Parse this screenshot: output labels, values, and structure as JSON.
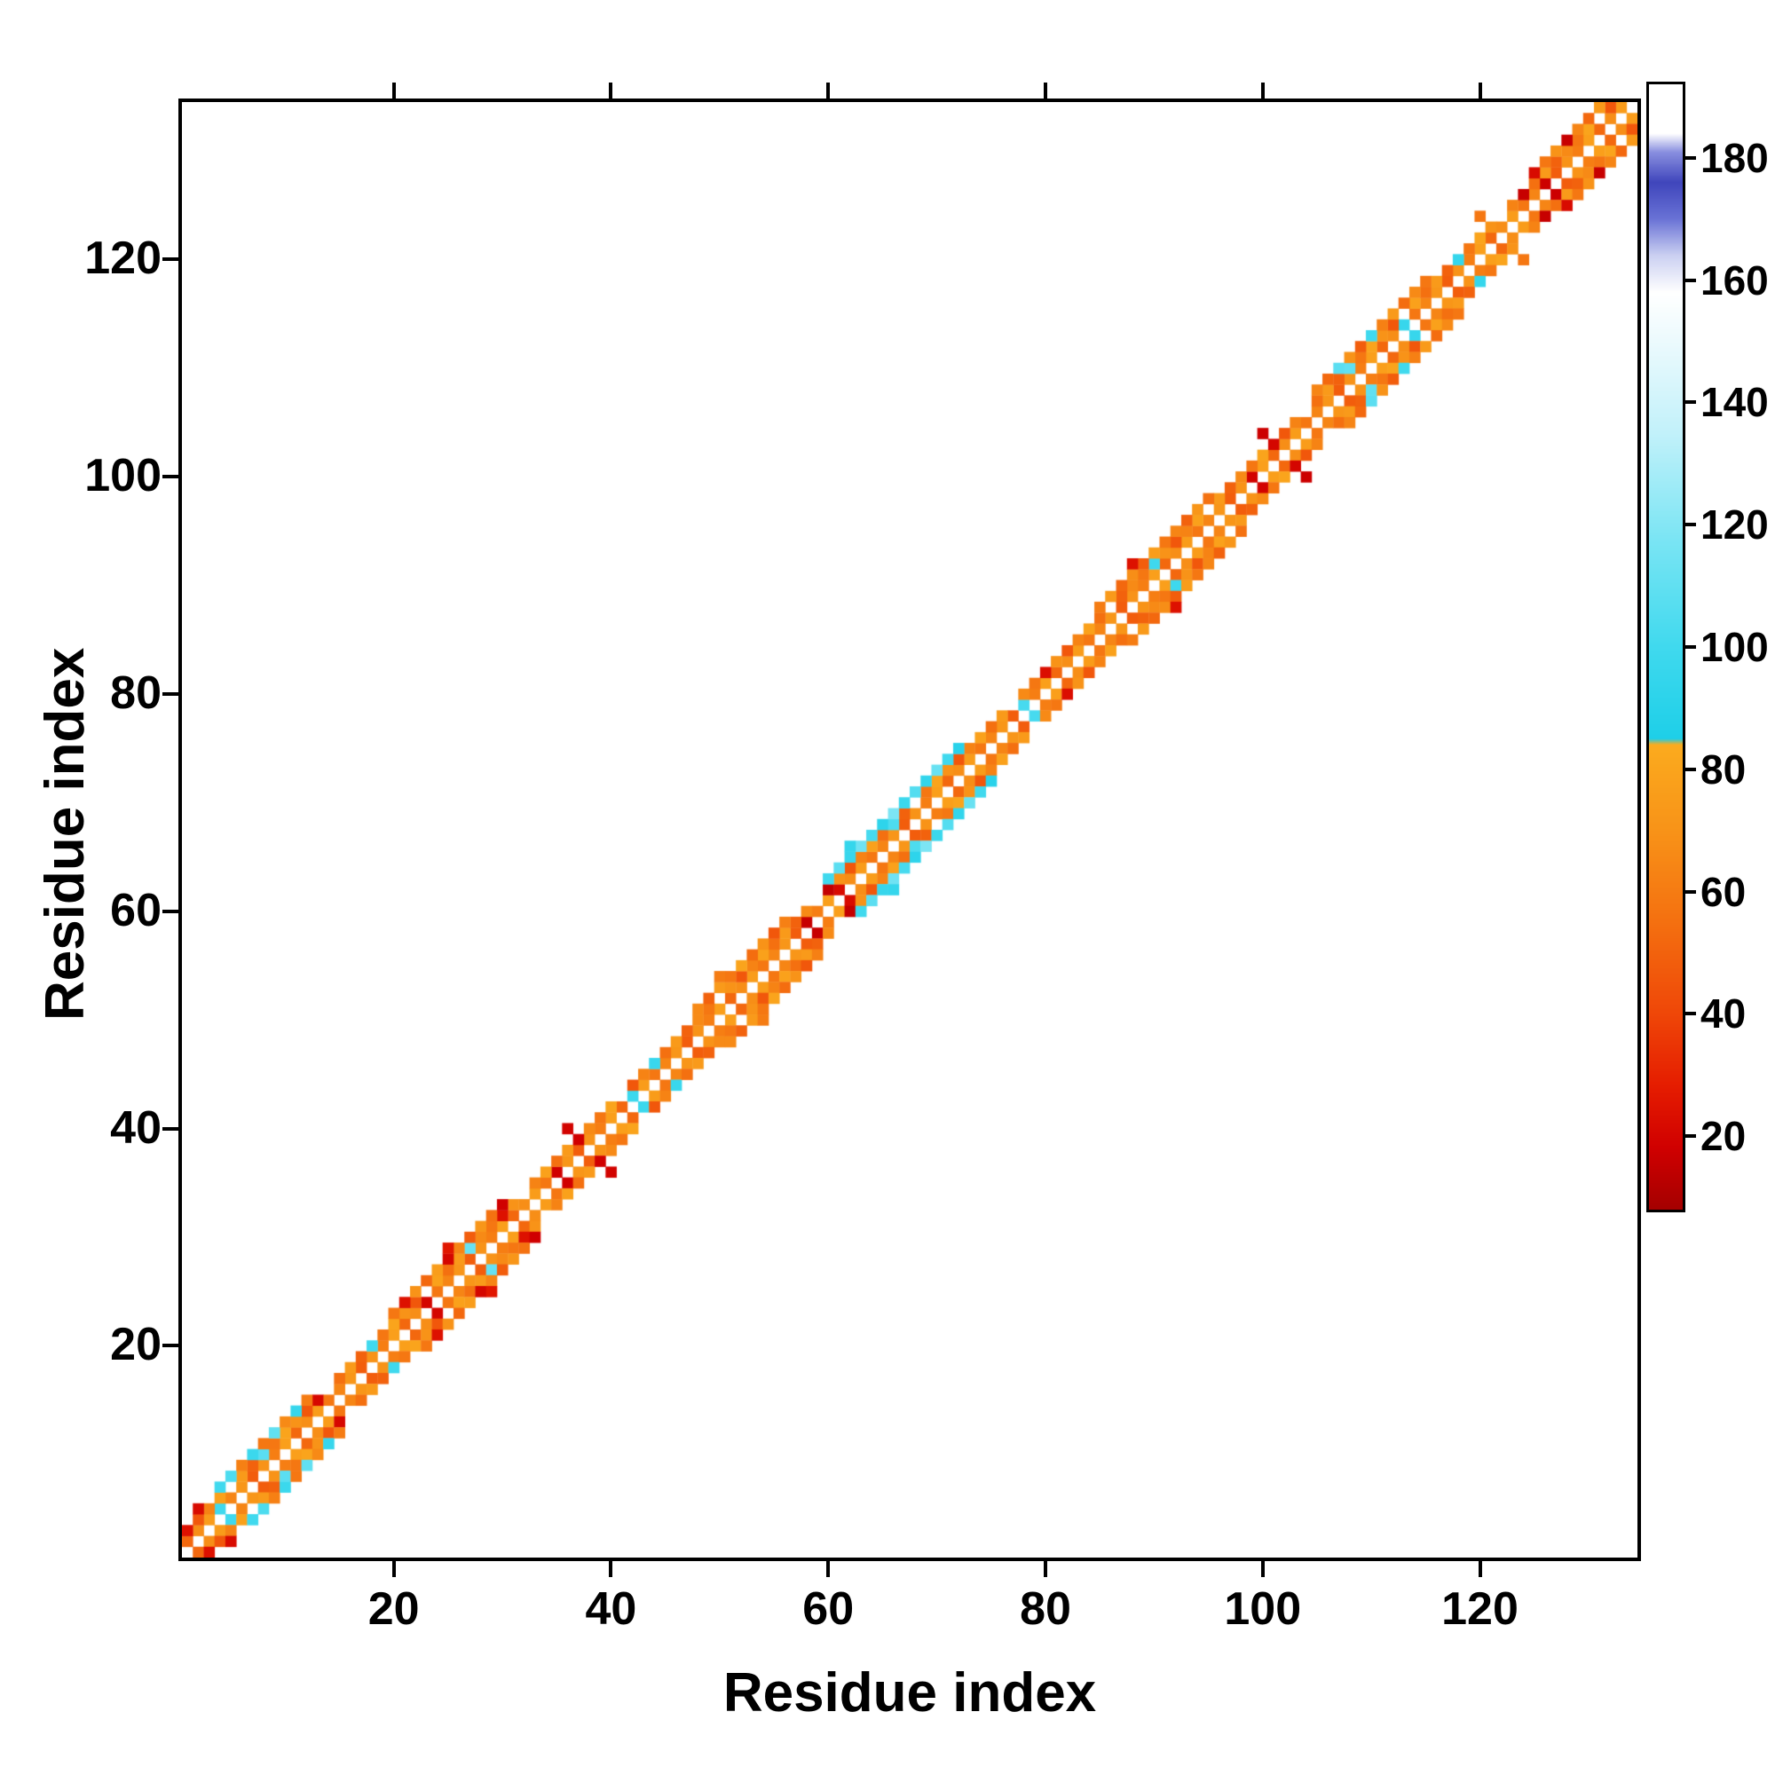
{
  "figure": {
    "background": "#ffffff"
  },
  "chart_data": {
    "type": "heatmap",
    "title": "",
    "xlabel": "Residue index",
    "ylabel": "Residue index",
    "n_residues": 134,
    "x_ticks": [
      20,
      40,
      60,
      80,
      100,
      120
    ],
    "y_ticks": [
      20,
      40,
      60,
      80,
      100,
      120
    ],
    "grid": false,
    "diagonal_masked": true,
    "colorbar": {
      "position": "right",
      "min": 8,
      "max": 192,
      "ticks": [
        20,
        40,
        60,
        80,
        100,
        120,
        140,
        160,
        180
      ],
      "stops": [
        {
          "v": 8,
          "c": "#a50000"
        },
        {
          "v": 18,
          "c": "#d00000"
        },
        {
          "v": 28,
          "c": "#e51c00"
        },
        {
          "v": 40,
          "c": "#ef4708"
        },
        {
          "v": 55,
          "c": "#f47010"
        },
        {
          "v": 70,
          "c": "#f89318"
        },
        {
          "v": 84,
          "c": "#fbab1e"
        },
        {
          "v": 85,
          "c": "#1ecfe8"
        },
        {
          "v": 100,
          "c": "#40d9ee"
        },
        {
          "v": 118,
          "c": "#7ce5f4"
        },
        {
          "v": 135,
          "c": "#c2f1fa"
        },
        {
          "v": 150,
          "c": "#ecfafd"
        },
        {
          "v": 158,
          "c": "#ffffff"
        },
        {
          "v": 164,
          "c": "#ccd1f2"
        },
        {
          "v": 170,
          "c": "#6a73d6"
        },
        {
          "v": 176,
          "c": "#4046bc"
        },
        {
          "v": 181,
          "c": "#8a90e0"
        },
        {
          "v": 184,
          "c": "#ffffff"
        },
        {
          "v": 192,
          "c": "#ffffff"
        }
      ]
    },
    "band": {
      "offset1": [
        52,
        68,
        75,
        100,
        64,
        72,
        48,
        70,
        61,
        77,
        52,
        68,
        75,
        58,
        64,
        72,
        48,
        70,
        61,
        77,
        52,
        68,
        20,
        58,
        64,
        72,
        48,
        70,
        61,
        77,
        52,
        68,
        75,
        58,
        18,
        72,
        48,
        70,
        61,
        77,
        52,
        98,
        75,
        58,
        64,
        72,
        48,
        70,
        61,
        77,
        52,
        68,
        75,
        58,
        64,
        72,
        48,
        16,
        61,
        77,
        22,
        68,
        75,
        58,
        64,
        72,
        48,
        70,
        61,
        77,
        52,
        68,
        75,
        58,
        64,
        72,
        48,
        102,
        61,
        77,
        52,
        68,
        75,
        58,
        64,
        72,
        48,
        70,
        61,
        77,
        52,
        68,
        75,
        58,
        64,
        72,
        48,
        70,
        19,
        77,
        52,
        68,
        75,
        58,
        64,
        72,
        48,
        70,
        61,
        77,
        52,
        68,
        96,
        58,
        64,
        72,
        48,
        70,
        61,
        77,
        52,
        68,
        75,
        58,
        64,
        17,
        48,
        70,
        61,
        77,
        52,
        68,
        75
      ],
      "offset2": [
        24,
        46,
        63,
        78,
        null,
        74,
        50,
        108,
        58,
        80,
        70,
        46,
        21,
        null,
        55,
        74,
        50,
        100,
        58,
        80,
        70,
        46,
        null,
        78,
        55,
        74,
        112,
        66,
        58,
        24,
        70,
        null,
        63,
        78,
        55,
        74,
        18,
        66,
        58,
        80,
        null,
        46,
        63,
        97,
        55,
        74,
        50,
        66,
        58,
        null,
        70,
        46,
        63,
        78,
        55,
        74,
        50,
        66,
        null,
        15,
        70,
        46,
        63,
        78,
        55,
        104,
        50,
        null,
        58,
        80,
        70,
        46,
        63,
        78,
        55,
        74,
        null,
        66,
        58,
        23,
        70,
        46,
        63,
        78,
        55,
        null,
        50,
        66,
        58,
        99,
        70,
        46,
        63,
        78,
        null,
        74,
        50,
        66,
        58,
        80,
        20,
        46,
        63,
        null,
        55,
        74,
        50,
        110,
        58,
        80,
        70,
        46,
        null,
        78,
        55,
        74,
        50,
        95,
        58,
        80,
        70,
        null,
        63,
        16,
        55,
        74,
        50,
        66,
        58,
        80,
        null,
        46
      ],
      "offset3": [
        null,
        22,
        null,
        100,
        104,
        62,
        98,
        58,
        110,
        66,
        96,
        60,
        null,
        null,
        null,
        null,
        null,
        null,
        null,
        58,
        24,
        70,
        52,
        76,
        20,
        64,
        48,
        72,
        56,
        18,
        null,
        null,
        null,
        null,
        null,
        null,
        null,
        null,
        null,
        null,
        null,
        null,
        null,
        null,
        null,
        null,
        null,
        66,
        50,
        74,
        58,
        80,
        54,
        70,
        46,
        62,
        null,
        null,
        null,
        100,
        108,
        96,
        114,
        102,
        92,
        118,
        98,
        106,
        94,
        112,
        100,
        90,
        null,
        null,
        null,
        null,
        null,
        null,
        null,
        null,
        null,
        null,
        null,
        null,
        60,
        74,
        52,
        68,
        48,
        76,
        58,
        64,
        50,
        72,
        56,
        null,
        null,
        null,
        null,
        null,
        null,
        null,
        null,
        null,
        64,
        52,
        108,
        70,
        48,
        100,
        62,
        74,
        54,
        66,
        58,
        null,
        null,
        null,
        null,
        null,
        null,
        null,
        null,
        null,
        22,
        58,
        70,
        16,
        64,
        52,
        74
      ],
      "offset4_cells": [
        [
          25,
          26
        ],
        [
          36,
          19
        ],
        [
          50,
          60
        ],
        [
          62,
          95
        ],
        [
          88,
          24
        ],
        [
          100,
          17
        ],
        [
          120,
          58
        ]
      ]
    }
  }
}
